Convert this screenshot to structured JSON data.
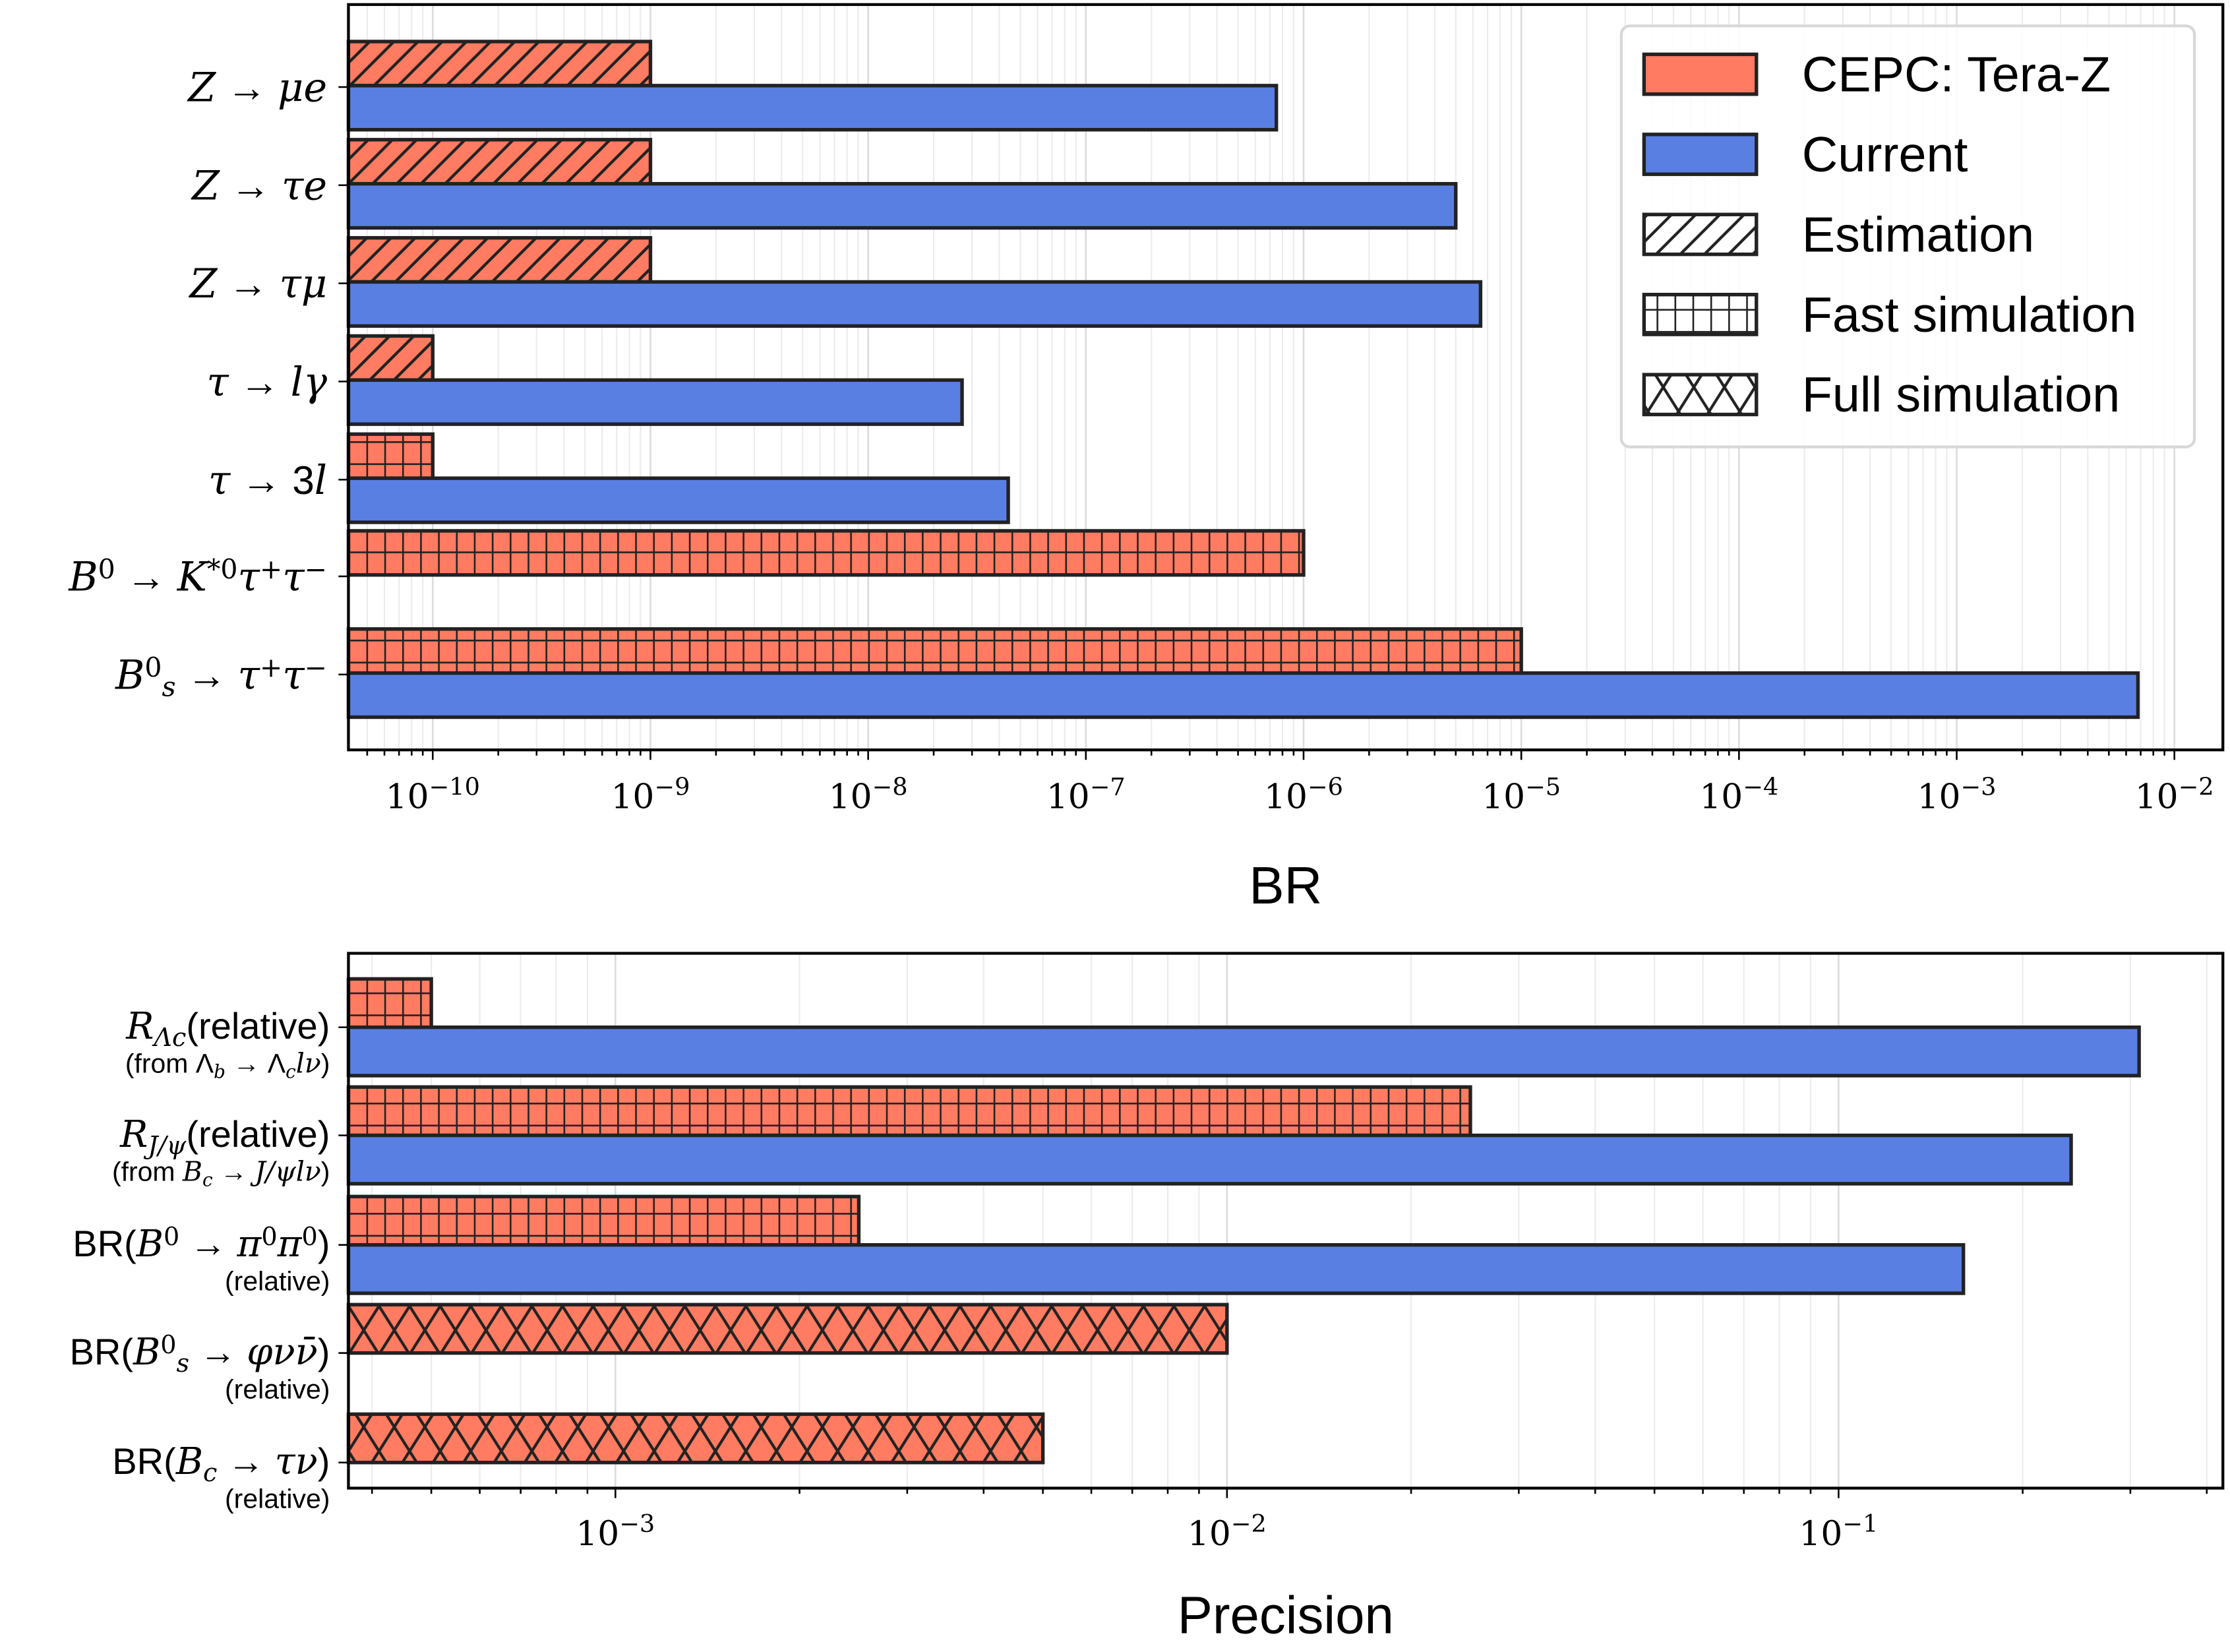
{
  "legend": {
    "entries": [
      {
        "label": "CEPC: Tera-Z",
        "kind": "color",
        "color": "#FF7B61"
      },
      {
        "label": "Current",
        "kind": "color",
        "color": "#5A7FE3"
      },
      {
        "label": "Estimation",
        "kind": "hatch",
        "hatch": "//"
      },
      {
        "label": "Fast simulation",
        "kind": "hatch",
        "hatch": "+"
      },
      {
        "label": "Full simulation",
        "kind": "hatch",
        "hatch": "x"
      }
    ]
  },
  "chart_data": [
    {
      "type": "bar",
      "orientation": "horizontal",
      "xscale": "log",
      "xlabel": "BR",
      "xlim": [
        4.1e-11,
        0.0167
      ],
      "grid": "vertical, major and minor",
      "legend_position": "top-right",
      "x_tick_labels": [
        {
          "base": "10",
          "exp": "−10",
          "value": 1e-10
        },
        {
          "base": "10",
          "exp": "−9",
          "value": 1e-09
        },
        {
          "base": "10",
          "exp": "−8",
          "value": 1e-08
        },
        {
          "base": "10",
          "exp": "−7",
          "value": 1e-07
        },
        {
          "base": "10",
          "exp": "−6",
          "value": 1e-06
        },
        {
          "base": "10",
          "exp": "−5",
          "value": 1e-05
        },
        {
          "base": "10",
          "exp": "−4",
          "value": 0.0001
        },
        {
          "base": "10",
          "exp": "−3",
          "value": 0.001
        },
        {
          "base": "10",
          "exp": "−2",
          "value": 0.01
        }
      ],
      "colors": {
        "cepc": "#FF7B61",
        "current": "#5A7FE3",
        "edge": "#222222"
      },
      "categories": [
        {
          "label": [
            [
              {
                "t": "Z",
                "s": "i"
              },
              {
                "t": " → ",
                "s": "r"
              },
              {
                "t": "μe",
                "s": "i"
              }
            ]
          ],
          "cepc": 1e-09,
          "cepc_method": "Estimation",
          "current": 7.5e-07
        },
        {
          "label": [
            [
              {
                "t": "Z",
                "s": "i"
              },
              {
                "t": " → ",
                "s": "r"
              },
              {
                "t": "τe",
                "s": "i"
              }
            ]
          ],
          "cepc": 1e-09,
          "cepc_method": "Estimation",
          "current": 5e-06
        },
        {
          "label": [
            [
              {
                "t": "Z",
                "s": "i"
              },
              {
                "t": " → ",
                "s": "r"
              },
              {
                "t": "τμ",
                "s": "i"
              }
            ]
          ],
          "cepc": 1e-09,
          "cepc_method": "Estimation",
          "current": 6.5e-06
        },
        {
          "label": [
            [
              {
                "t": "τ",
                "s": "i"
              },
              {
                "t": " → ",
                "s": "r"
              },
              {
                "t": "lγ",
                "s": "i"
              }
            ]
          ],
          "cepc": 1e-10,
          "cepc_method": "Estimation",
          "current": 2.7e-08
        },
        {
          "label": [
            [
              {
                "t": "τ",
                "s": "i"
              },
              {
                "t": " → ",
                "s": "r"
              },
              {
                "t": "3",
                "s": "r"
              },
              {
                "t": "l",
                "s": "i"
              }
            ]
          ],
          "cepc": 1e-10,
          "cepc_method": "Fast simulation",
          "current": 4.4e-08
        },
        {
          "label": [
            [
              {
                "t": "B",
                "s": "i"
              },
              {
                "t": "0",
                "s": "sup"
              },
              {
                "t": " → ",
                "s": "r"
              },
              {
                "t": "K",
                "s": "i"
              },
              {
                "t": "*0",
                "s": "sup"
              },
              {
                "t": "τ",
                "s": "i"
              },
              {
                "t": "+",
                "s": "sup"
              },
              {
                "t": "τ",
                "s": "i"
              },
              {
                "t": "−",
                "s": "sup"
              }
            ]
          ],
          "cepc": 1e-06,
          "cepc_method": "Fast simulation",
          "current": null
        },
        {
          "label": [
            [
              {
                "t": "B",
                "s": "i"
              },
              {
                "t": "0",
                "s": "sup"
              },
              {
                "t": "s",
                "s": "sub"
              },
              {
                "t": " → ",
                "s": "r"
              },
              {
                "t": "τ",
                "s": "i"
              },
              {
                "t": "+",
                "s": "sup"
              },
              {
                "t": "τ",
                "s": "i"
              },
              {
                "t": "−",
                "s": "sup"
              }
            ]
          ],
          "cepc": 1e-05,
          "cepc_method": "Fast simulation",
          "current": 0.0068
        }
      ]
    },
    {
      "type": "bar",
      "orientation": "horizontal",
      "xscale": "log",
      "xlabel": "Precision",
      "xlim": [
        0.000366,
        0.425
      ],
      "grid": "vertical, major and minor",
      "x_tick_labels": [
        {
          "base": "10",
          "exp": "−3",
          "value": 0.001
        },
        {
          "base": "10",
          "exp": "−2",
          "value": 0.01
        },
        {
          "base": "10",
          "exp": "−1",
          "value": 0.1
        }
      ],
      "colors": {
        "cepc": "#FF7B61",
        "current": "#5A7FE3",
        "edge": "#222222"
      },
      "categories": [
        {
          "label": [
            [
              {
                "t": "R",
                "s": "i"
              },
              {
                "t": "Λc",
                "s": "sub"
              },
              {
                "t": "(relative)",
                "s": "r"
              }
            ],
            [
              {
                "t": "(from ",
                "s": "r"
              },
              {
                "t": "Λ",
                "s": "r"
              },
              {
                "t": "b",
                "s": "sub"
              },
              {
                "t": " → ",
                "s": "r"
              },
              {
                "t": "Λ",
                "s": "r"
              },
              {
                "t": "c",
                "s": "sub"
              },
              {
                "t": "lν",
                "s": "i"
              },
              {
                "t": ")",
                "s": "r"
              }
            ]
          ],
          "cepc": 0.0005,
          "cepc_method": "Fast simulation",
          "current": 0.31
        },
        {
          "label": [
            [
              {
                "t": "R",
                "s": "i"
              },
              {
                "t": "J/ψ",
                "s": "sub"
              },
              {
                "t": "(relative)",
                "s": "r"
              }
            ],
            [
              {
                "t": "(from ",
                "s": "r"
              },
              {
                "t": "B",
                "s": "i"
              },
              {
                "t": "c",
                "s": "sub"
              },
              {
                "t": " → ",
                "s": "r"
              },
              {
                "t": "J/ψlν",
                "s": "i"
              },
              {
                "t": ")",
                "s": "r"
              }
            ]
          ],
          "cepc": 0.025,
          "cepc_method": "Fast simulation",
          "current": 0.24
        },
        {
          "label": [
            [
              {
                "t": "BR(",
                "s": "r"
              },
              {
                "t": "B",
                "s": "i"
              },
              {
                "t": "0",
                "s": "sup"
              },
              {
                "t": " → ",
                "s": "r"
              },
              {
                "t": "π",
                "s": "i"
              },
              {
                "t": "0",
                "s": "sup"
              },
              {
                "t": "π",
                "s": "i"
              },
              {
                "t": "0",
                "s": "sup"
              },
              {
                "t": ")",
                "s": "r"
              }
            ],
            [
              {
                "t": "(relative)",
                "s": "r"
              }
            ]
          ],
          "cepc": 0.0025,
          "cepc_method": "Fast simulation",
          "current": 0.16
        },
        {
          "label": [
            [
              {
                "t": "BR(",
                "s": "r"
              },
              {
                "t": "B",
                "s": "i"
              },
              {
                "t": "0",
                "s": "sup"
              },
              {
                "t": "s",
                "s": "sub"
              },
              {
                "t": " → ",
                "s": "r"
              },
              {
                "t": "φνν̄",
                "s": "i"
              },
              {
                "t": ")",
                "s": "r"
              }
            ],
            [
              {
                "t": "(relative)",
                "s": "r"
              }
            ]
          ],
          "cepc": 0.01,
          "cepc_method": "Full simulation",
          "current": null
        },
        {
          "label": [
            [
              {
                "t": "BR(",
                "s": "r"
              },
              {
                "t": "B",
                "s": "i"
              },
              {
                "t": "c",
                "s": "sub"
              },
              {
                "t": " → ",
                "s": "r"
              },
              {
                "t": "τν",
                "s": "i"
              },
              {
                "t": ")",
                "s": "r"
              }
            ],
            [
              {
                "t": "(relative)",
                "s": "r"
              }
            ]
          ],
          "cepc": 0.005,
          "cepc_method": "Full simulation",
          "current": null
        }
      ]
    }
  ]
}
